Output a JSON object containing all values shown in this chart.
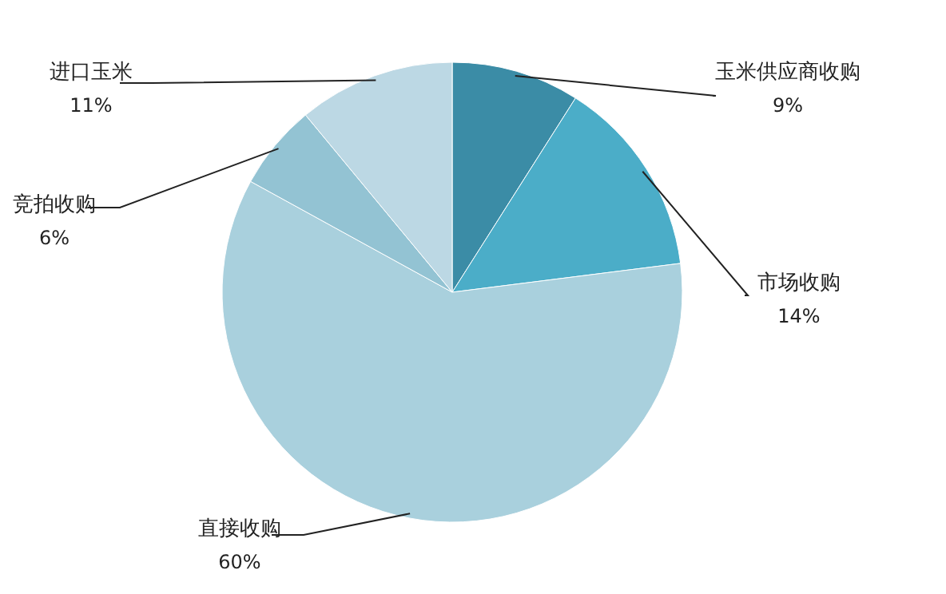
{
  "chart_data": {
    "type": "pie",
    "categories": [
      "玉米供应商收购",
      "市场收购",
      "直接收购",
      "竞拍收购",
      "进口玉米"
    ],
    "values": [
      9,
      14,
      60,
      6,
      11
    ],
    "colors": [
      "#3b8ca6",
      "#4badc8",
      "#a9d0dd",
      "#93c3d3",
      "#bcd8e4"
    ],
    "value_labels": [
      "9%",
      "14%",
      "60%",
      "6%",
      "11%"
    ]
  }
}
